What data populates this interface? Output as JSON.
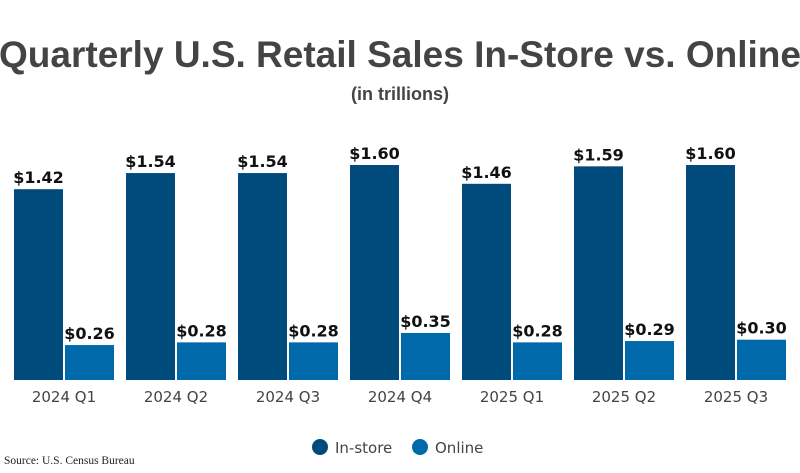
{
  "chart_data": {
    "type": "bar",
    "title": "Quarterly U.S. Retail Sales In-Store vs. Online",
    "subtitle": "(in trillions)",
    "categories": [
      "2024 Q1",
      "2024 Q2",
      "2024 Q3",
      "2024 Q4",
      "2025 Q1",
      "2025 Q2",
      "2025 Q3"
    ],
    "series": [
      {
        "name": "In-store",
        "color": "#004a7c",
        "values": [
          1.42,
          1.54,
          1.54,
          1.6,
          1.46,
          1.59,
          1.6
        ],
        "labels": [
          "$1.42",
          "$1.54",
          "$1.54",
          "$1.60",
          "$1.46",
          "$1.59",
          "$1.60"
        ]
      },
      {
        "name": "Online",
        "color": "#0069aa",
        "values": [
          0.26,
          0.28,
          0.28,
          0.35,
          0.28,
          0.29,
          0.3
        ],
        "labels": [
          "$0.26",
          "$0.28",
          "$0.28",
          "$0.35",
          "$0.28",
          "$0.29",
          "$0.30"
        ]
      }
    ],
    "ylim": [
      0,
      1.6
    ],
    "grid": false,
    "legend": "bottom",
    "source": "Source: U.S. Census Bureau"
  }
}
